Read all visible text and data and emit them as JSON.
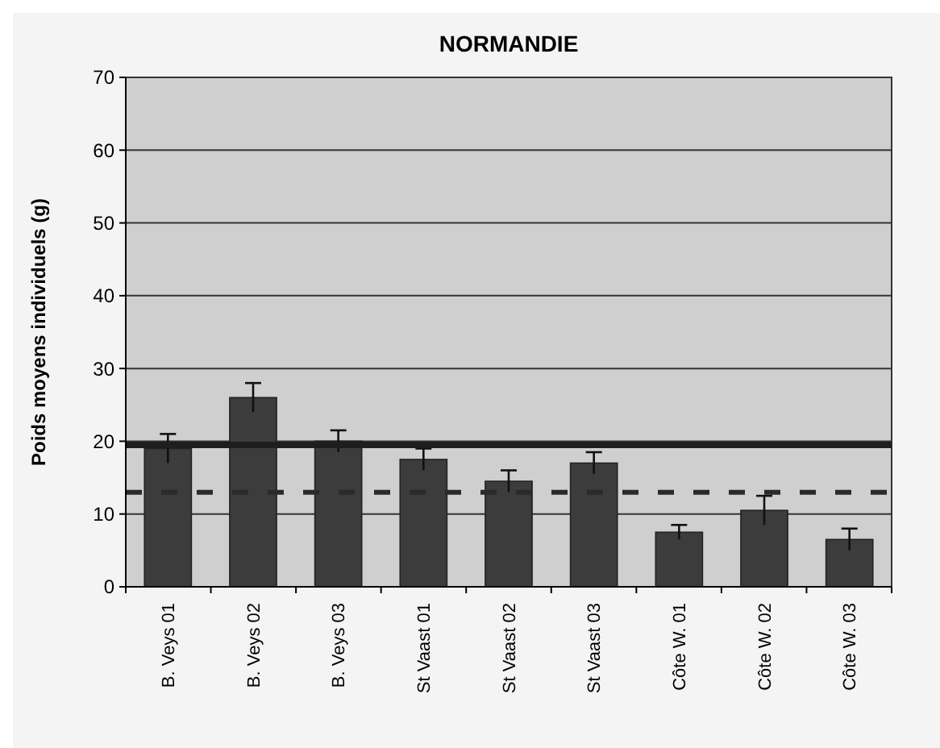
{
  "chart_data": {
    "type": "bar",
    "title": "NORMANDIE",
    "ylabel": "Poids moyens individuels (g)",
    "categories": [
      "B. Veys 01",
      "B. Veys 02",
      "B. Veys 03",
      "St Vaast 01",
      "St Vaast 02",
      "St Vaast 03",
      "Côte W. 01",
      "Côte W. 02",
      "Côte W. 03"
    ],
    "values": [
      19,
      26,
      20,
      17.5,
      14.5,
      17,
      7.5,
      10.5,
      6.5
    ],
    "errors": [
      2,
      2,
      1.5,
      1.5,
      1.5,
      1.5,
      1,
      2,
      1.5
    ],
    "color": "#3c3c3c",
    "ylim": [
      0,
      70
    ],
    "yticks": [
      0,
      10,
      20,
      30,
      40,
      50,
      60,
      70
    ],
    "grid": "y",
    "ref_lines": [
      {
        "axis": "y",
        "value": 19.5,
        "color": "#1e1e1e",
        "line_style": "solid"
      },
      {
        "axis": "y",
        "value": 13,
        "color": "#2a2a2a",
        "line_style": "dashed"
      }
    ]
  }
}
